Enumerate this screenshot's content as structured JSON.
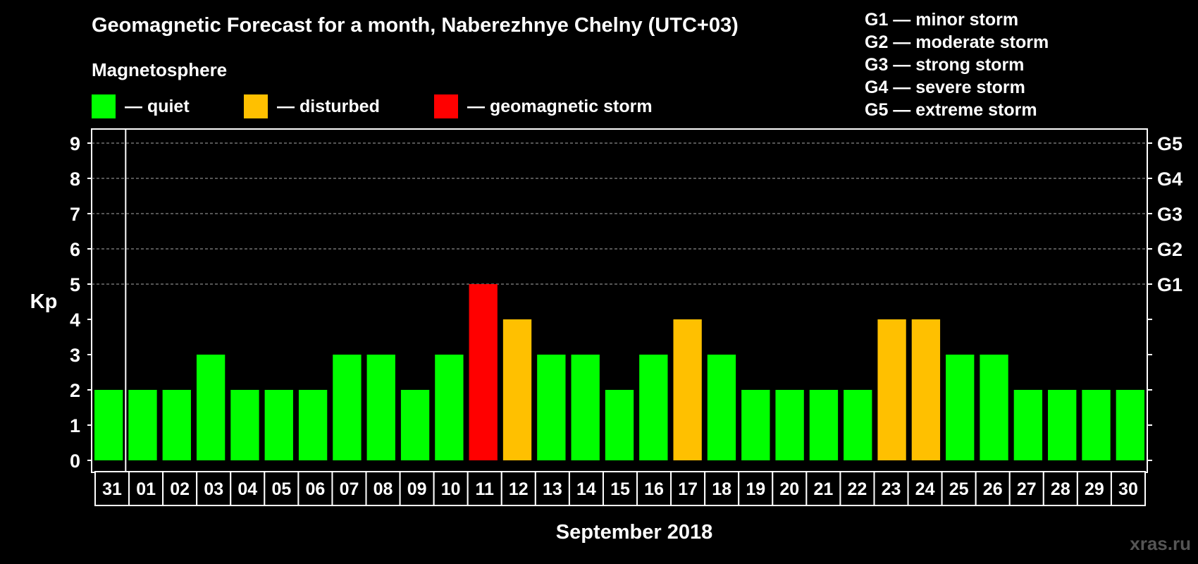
{
  "title": "Geomagnetic Forecast for a month, Naberezhnye Chelny (UTC+03)",
  "legend": {
    "heading": "Magnetosphere",
    "items": [
      {
        "label": "— quiet",
        "color": "#00ff00"
      },
      {
        "label": "— disturbed",
        "color": "#ffc000"
      },
      {
        "label": "— geomagnetic storm",
        "color": "#ff0000"
      }
    ]
  },
  "g_scale_legend": [
    "G1 — minor storm",
    "G2 — moderate storm",
    "G3 — strong storm",
    "G4 — severe storm",
    "G5 — extreme storm"
  ],
  "chart_data": {
    "type": "bar",
    "title": "Geomagnetic Forecast for a month, Naberezhnye Chelny (UTC+03)",
    "xlabel": "September 2018",
    "ylabel": "Kp",
    "ylim": [
      0,
      9
    ],
    "yticks": [
      "0",
      "1",
      "2",
      "3",
      "4",
      "5",
      "6",
      "7",
      "8",
      "9"
    ],
    "right_axis_labels": [
      {
        "kp": 5,
        "label": "G1"
      },
      {
        "kp": 6,
        "label": "G2"
      },
      {
        "kp": 7,
        "label": "G3"
      },
      {
        "kp": 8,
        "label": "G4"
      },
      {
        "kp": 9,
        "label": "G5"
      }
    ],
    "categories": [
      "31",
      "01",
      "02",
      "03",
      "04",
      "05",
      "06",
      "07",
      "08",
      "09",
      "10",
      "11",
      "12",
      "13",
      "14",
      "15",
      "16",
      "17",
      "18",
      "19",
      "20",
      "21",
      "22",
      "23",
      "24",
      "25",
      "26",
      "27",
      "28",
      "29",
      "30"
    ],
    "values": [
      2,
      2,
      2,
      3,
      2,
      2,
      2,
      3,
      3,
      2,
      3,
      5,
      4,
      3,
      3,
      2,
      3,
      4,
      3,
      2,
      2,
      2,
      2,
      4,
      4,
      3,
      3,
      2,
      2,
      2,
      2
    ],
    "levels": [
      "quiet",
      "quiet",
      "quiet",
      "quiet",
      "quiet",
      "quiet",
      "quiet",
      "quiet",
      "quiet",
      "quiet",
      "quiet",
      "storm",
      "disturbed",
      "quiet",
      "quiet",
      "quiet",
      "quiet",
      "disturbed",
      "quiet",
      "quiet",
      "quiet",
      "quiet",
      "quiet",
      "disturbed",
      "disturbed",
      "quiet",
      "quiet",
      "quiet",
      "quiet",
      "quiet",
      "quiet"
    ],
    "level_colors": {
      "quiet": "#00ff00",
      "disturbed": "#ffc000",
      "storm": "#ff0000"
    },
    "grid_lines_kp": [
      5,
      6,
      7,
      8,
      9
    ],
    "legend_position": "top"
  },
  "watermark": "xras.ru"
}
